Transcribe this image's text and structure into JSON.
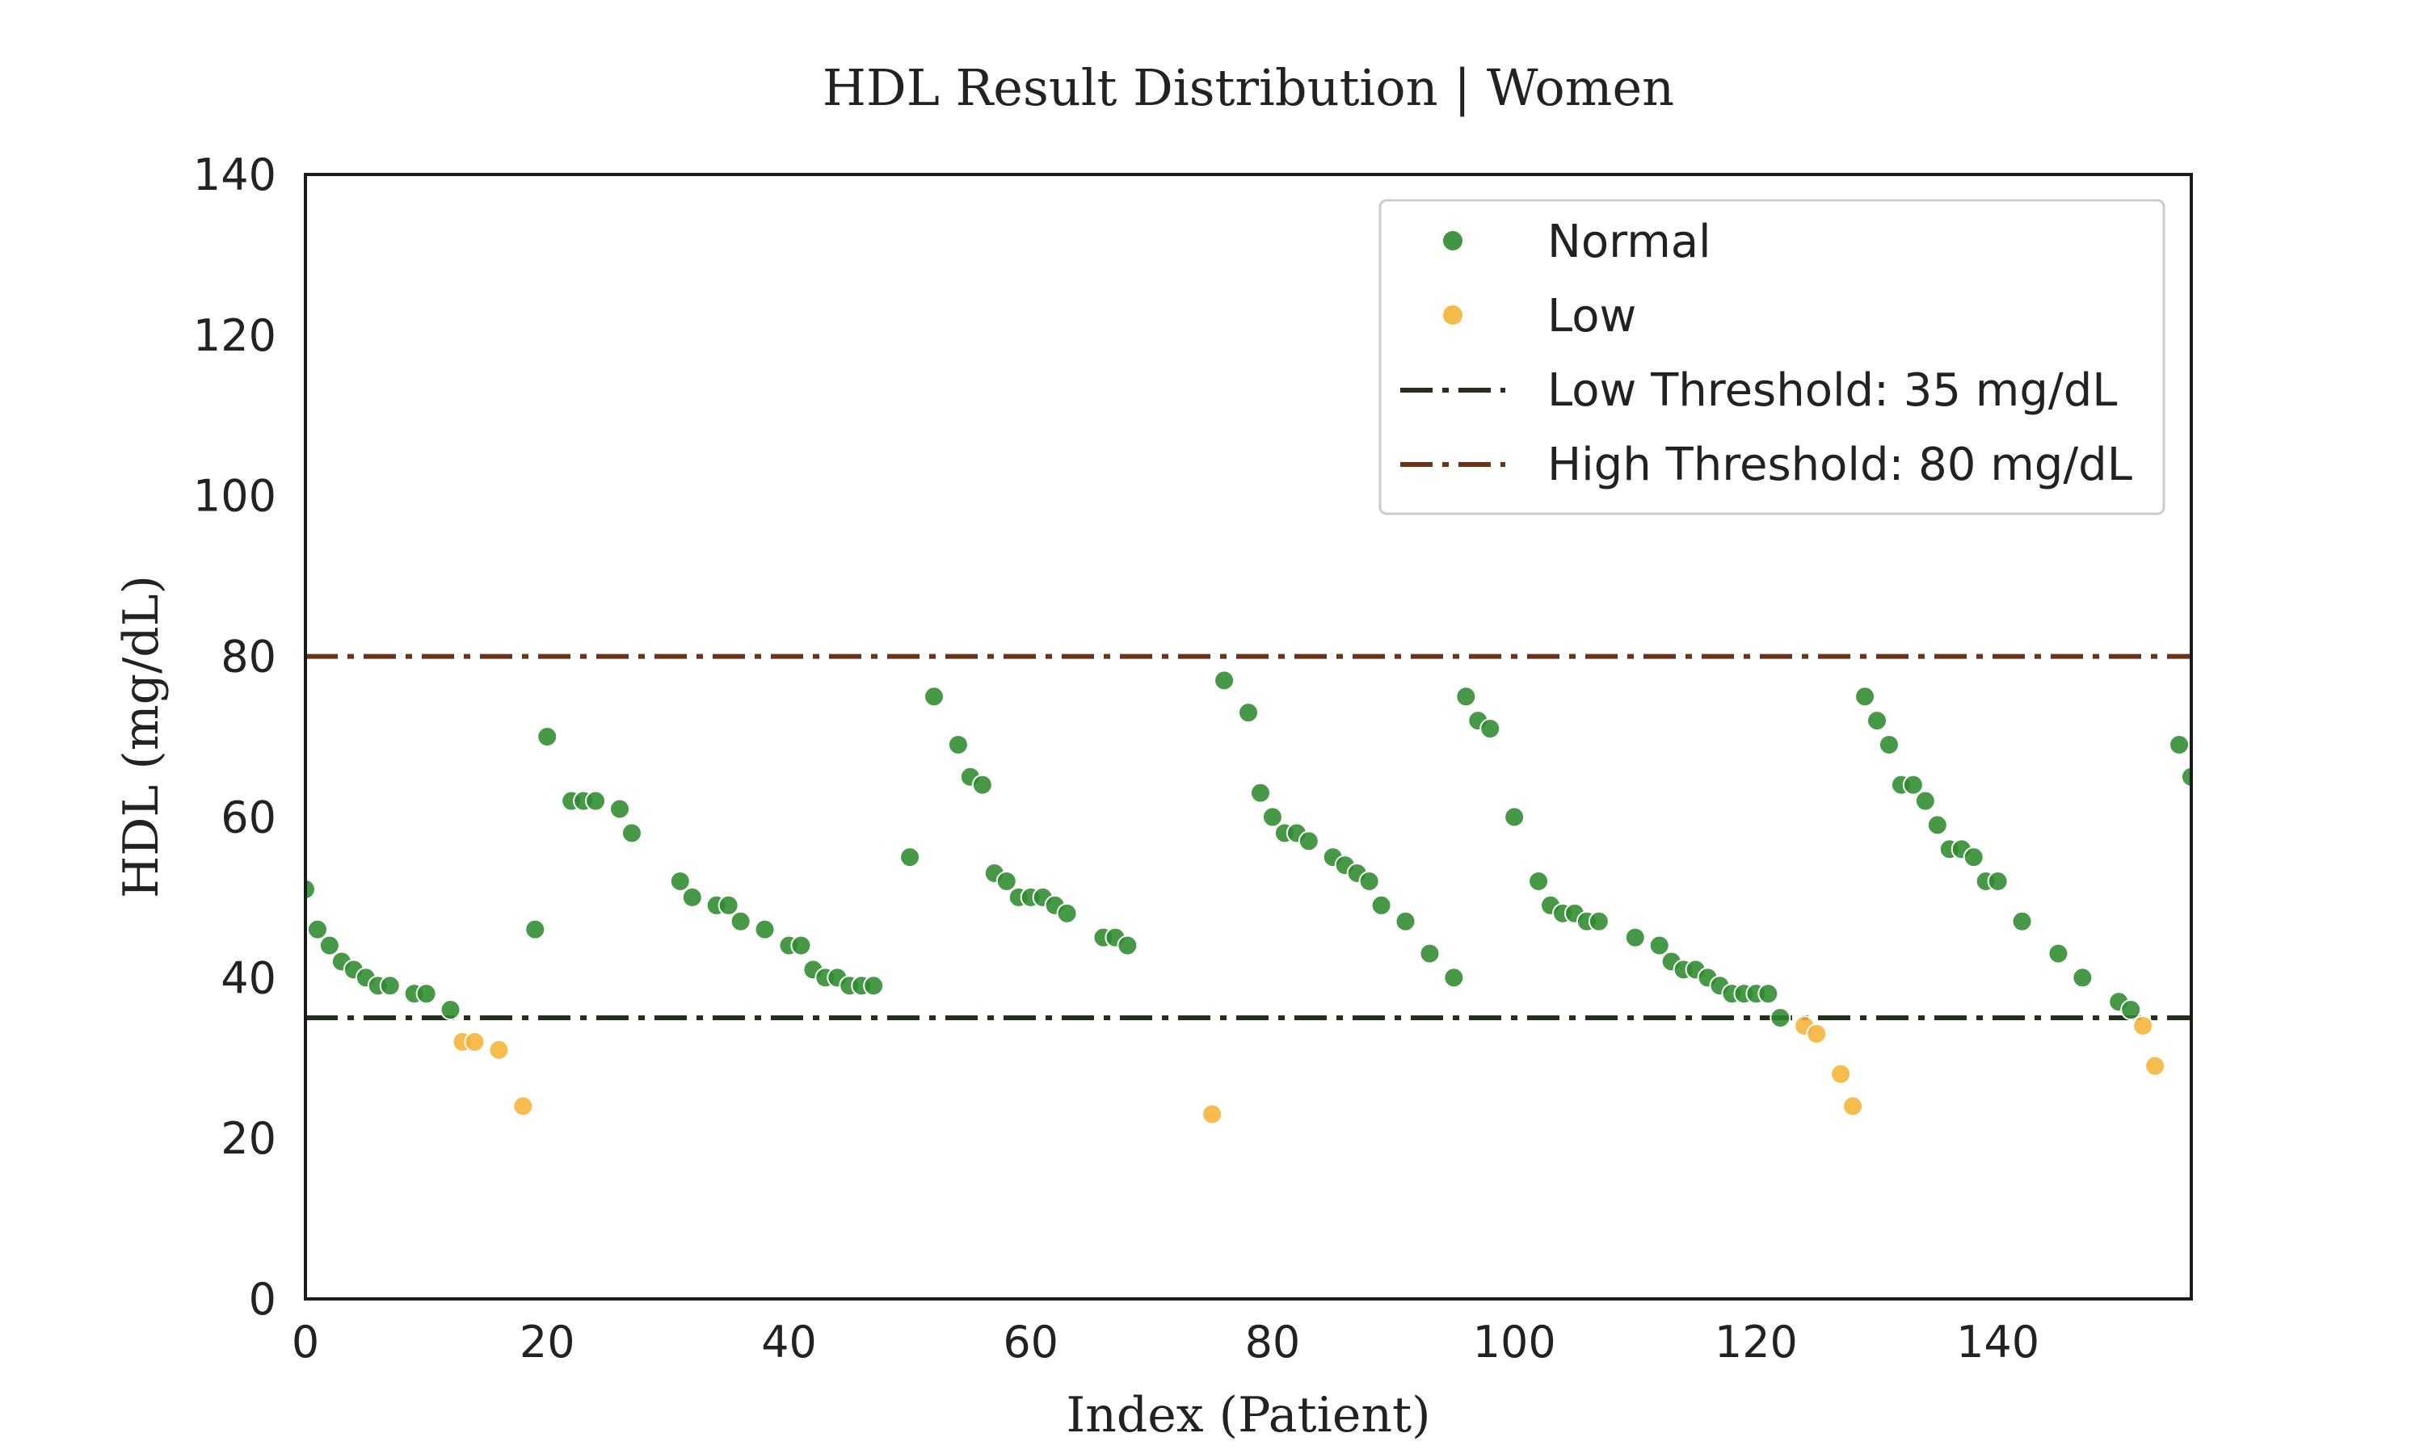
{
  "chart_data": {
    "type": "scatter",
    "title": "HDL Result Distribution | Women",
    "xlabel": "Index (Patient)",
    "ylabel": "HDL (mg/dL)",
    "xlim": [
      0,
      156
    ],
    "ylim": [
      0,
      140
    ],
    "x_ticks": [
      "0",
      "20",
      "40",
      "60",
      "80",
      "100",
      "120",
      "140"
    ],
    "y_ticks": [
      "0",
      "20",
      "40",
      "60",
      "80",
      "100",
      "120",
      "140"
    ],
    "grid": false,
    "legend_position": "top-right",
    "series": [
      {
        "name": "Normal",
        "color": "#2e8b2e",
        "points": [
          [
            0,
            51
          ],
          [
            1,
            46
          ],
          [
            2,
            44
          ],
          [
            3,
            42
          ],
          [
            4,
            41
          ],
          [
            5,
            40
          ],
          [
            6,
            39
          ],
          [
            7,
            39
          ],
          [
            9,
            38
          ],
          [
            10,
            38
          ],
          [
            12,
            36
          ],
          [
            19,
            46
          ],
          [
            20,
            70
          ],
          [
            22,
            62
          ],
          [
            23,
            62
          ],
          [
            24,
            62
          ],
          [
            26,
            61
          ],
          [
            27,
            58
          ],
          [
            31,
            52
          ],
          [
            32,
            50
          ],
          [
            34,
            49
          ],
          [
            35,
            49
          ],
          [
            36,
            47
          ],
          [
            38,
            46
          ],
          [
            40,
            44
          ],
          [
            41,
            44
          ],
          [
            42,
            41
          ],
          [
            43,
            40
          ],
          [
            44,
            40
          ],
          [
            45,
            39
          ],
          [
            46,
            39
          ],
          [
            47,
            39
          ],
          [
            50,
            55
          ],
          [
            52,
            75
          ],
          [
            54,
            69
          ],
          [
            55,
            65
          ],
          [
            56,
            64
          ],
          [
            57,
            53
          ],
          [
            58,
            52
          ],
          [
            59,
            50
          ],
          [
            60,
            50
          ],
          [
            61,
            50
          ],
          [
            62,
            49
          ],
          [
            63,
            48
          ],
          [
            66,
            45
          ],
          [
            67,
            45
          ],
          [
            68,
            44
          ],
          [
            76,
            77
          ],
          [
            78,
            73
          ],
          [
            79,
            63
          ],
          [
            80,
            60
          ],
          [
            81,
            58
          ],
          [
            82,
            58
          ],
          [
            83,
            57
          ],
          [
            85,
            55
          ],
          [
            86,
            54
          ],
          [
            87,
            53
          ],
          [
            88,
            52
          ],
          [
            89,
            49
          ],
          [
            91,
            47
          ],
          [
            93,
            43
          ],
          [
            95,
            40
          ],
          [
            96,
            75
          ],
          [
            97,
            72
          ],
          [
            98,
            71
          ],
          [
            100,
            60
          ],
          [
            102,
            52
          ],
          [
            103,
            49
          ],
          [
            104,
            48
          ],
          [
            105,
            48
          ],
          [
            106,
            47
          ],
          [
            107,
            47
          ],
          [
            110,
            45
          ],
          [
            112,
            44
          ],
          [
            113,
            42
          ],
          [
            114,
            41
          ],
          [
            115,
            41
          ],
          [
            116,
            40
          ],
          [
            117,
            39
          ],
          [
            118,
            38
          ],
          [
            119,
            38
          ],
          [
            120,
            38
          ],
          [
            121,
            38
          ],
          [
            122,
            35
          ],
          [
            129,
            75
          ],
          [
            130,
            72
          ],
          [
            131,
            69
          ],
          [
            132,
            64
          ],
          [
            133,
            64
          ],
          [
            134,
            62
          ],
          [
            135,
            59
          ],
          [
            136,
            56
          ],
          [
            137,
            56
          ],
          [
            138,
            55
          ],
          [
            139,
            52
          ],
          [
            140,
            52
          ],
          [
            142,
            47
          ],
          [
            145,
            43
          ],
          [
            147,
            40
          ],
          [
            150,
            37
          ],
          [
            151,
            36
          ],
          [
            155,
            69
          ],
          [
            156,
            65
          ]
        ]
      },
      {
        "name": "Low",
        "color": "#f5b335",
        "points": [
          [
            13,
            32
          ],
          [
            14,
            32
          ],
          [
            16,
            31
          ],
          [
            18,
            24
          ],
          [
            75,
            23
          ],
          [
            124,
            34
          ],
          [
            125,
            33
          ],
          [
            127,
            28
          ],
          [
            128,
            24
          ],
          [
            152,
            34
          ],
          [
            153,
            29
          ]
        ]
      }
    ],
    "thresholds": [
      {
        "name": "Low Threshold: 35 mg/dL",
        "value": 35,
        "color": "#25301a"
      },
      {
        "name": "High Threshold: 80 mg/dL",
        "value": 80,
        "color": "#6b3317"
      }
    ]
  }
}
